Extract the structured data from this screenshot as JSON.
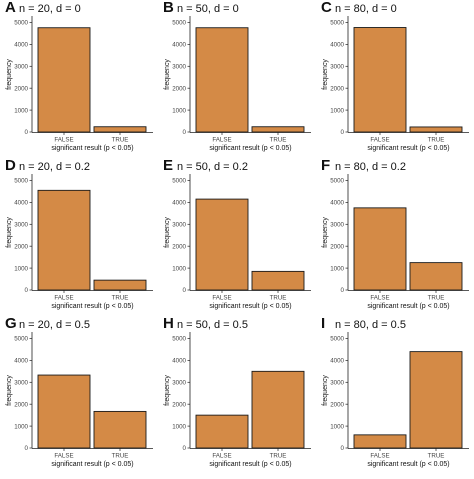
{
  "chart_data": [
    {
      "type": "bar",
      "letter": "A",
      "title": "n = 20, d = 0",
      "categories": [
        "FALSE",
        "TRUE"
      ],
      "values": [
        4760,
        240
      ],
      "ylim": [
        0,
        5250
      ],
      "yticks": [
        0,
        1000,
        2000,
        3000,
        4000,
        5000
      ],
      "xlabel": "significant result (p < 0.05)",
      "ylabel": "frequency"
    },
    {
      "type": "bar",
      "letter": "B",
      "title": "n = 50, d = 0",
      "categories": [
        "FALSE",
        "TRUE"
      ],
      "values": [
        4760,
        240
      ],
      "ylim": [
        0,
        5250
      ],
      "yticks": [
        0,
        1000,
        2000,
        3000,
        4000,
        5000
      ],
      "xlabel": "significant result (p < 0.05)",
      "ylabel": "frequency"
    },
    {
      "type": "bar",
      "letter": "C",
      "title": "n = 80, d = 0",
      "categories": [
        "FALSE",
        "TRUE"
      ],
      "values": [
        4770,
        230
      ],
      "ylim": [
        0,
        5250
      ],
      "yticks": [
        0,
        1000,
        2000,
        3000,
        4000,
        5000
      ],
      "xlabel": "significant result (p < 0.05)",
      "ylabel": "frequency"
    },
    {
      "type": "bar",
      "letter": "D",
      "title": "n = 20, d = 0.2",
      "categories": [
        "FALSE",
        "TRUE"
      ],
      "values": [
        4550,
        450
      ],
      "ylim": [
        0,
        5250
      ],
      "yticks": [
        0,
        1000,
        2000,
        3000,
        4000,
        5000
      ],
      "xlabel": "significant result (p < 0.05)",
      "ylabel": "frequency"
    },
    {
      "type": "bar",
      "letter": "E",
      "title": "n = 50, d = 0.2",
      "categories": [
        "FALSE",
        "TRUE"
      ],
      "values": [
        4150,
        850
      ],
      "ylim": [
        0,
        5250
      ],
      "yticks": [
        0,
        1000,
        2000,
        3000,
        4000,
        5000
      ],
      "xlabel": "significant result (p < 0.05)",
      "ylabel": "frequency"
    },
    {
      "type": "bar",
      "letter": "F",
      "title": "n = 80, d = 0.2",
      "categories": [
        "FALSE",
        "TRUE"
      ],
      "values": [
        3750,
        1250
      ],
      "ylim": [
        0,
        5250
      ],
      "yticks": [
        0,
        1000,
        2000,
        3000,
        4000,
        5000
      ],
      "xlabel": "significant result (p < 0.05)",
      "ylabel": "frequency"
    },
    {
      "type": "bar",
      "letter": "G",
      "title": "n = 20, d = 0.5",
      "categories": [
        "FALSE",
        "TRUE"
      ],
      "values": [
        3330,
        1670
      ],
      "ylim": [
        0,
        5250
      ],
      "yticks": [
        0,
        1000,
        2000,
        3000,
        4000,
        5000
      ],
      "xlabel": "significant result (p < 0.05)",
      "ylabel": "frequency"
    },
    {
      "type": "bar",
      "letter": "H",
      "title": "n = 50, d = 0.5",
      "categories": [
        "FALSE",
        "TRUE"
      ],
      "values": [
        1500,
        3500
      ],
      "ylim": [
        0,
        5250
      ],
      "yticks": [
        0,
        1000,
        2000,
        3000,
        4000,
        5000
      ],
      "xlabel": "significant result (p < 0.05)",
      "ylabel": "frequency"
    },
    {
      "type": "bar",
      "letter": "I",
      "title": "n = 80, d = 0.5",
      "categories": [
        "FALSE",
        "TRUE"
      ],
      "values": [
        600,
        4400
      ],
      "ylim": [
        0,
        5250
      ],
      "yticks": [
        0,
        1000,
        2000,
        3000,
        4000,
        5000
      ],
      "xlabel": "significant result (p < 0.05)",
      "ylabel": "frequency"
    }
  ],
  "colors": {
    "bar_fill": "#d48a46",
    "bar_stroke": "#1a1a1a",
    "axis": "#222222"
  }
}
